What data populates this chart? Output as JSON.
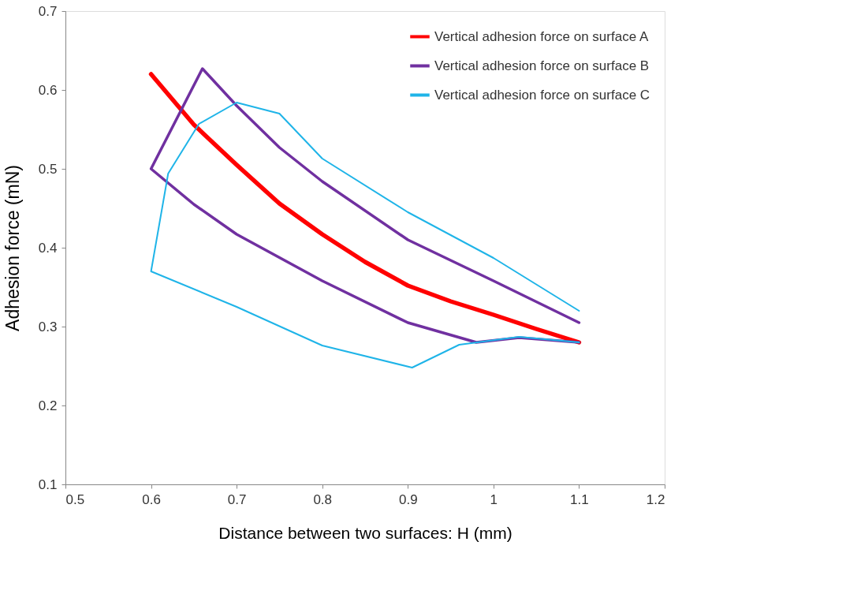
{
  "chart_data": {
    "type": "line",
    "xlabel": "Distance between two surfaces: H (mm)",
    "ylabel": "Adhesion force (mN)",
    "xlim": [
      0.5,
      1.2
    ],
    "xticks": [
      0.5,
      0.6,
      0.7,
      0.8,
      0.9,
      1,
      1.1,
      1.2
    ],
    "ylim": [
      0.1,
      0.7
    ],
    "yticks": [
      0.1,
      0.2,
      0.3,
      0.4,
      0.5,
      0.6,
      0.7
    ],
    "grid": false,
    "legend": "top right",
    "marker": "none",
    "line_style": "solid",
    "series": [
      {
        "name": "Vertical adhesion force on surface A",
        "color": "#ff0000",
        "x": [
          0.6,
          0.65,
          0.7,
          0.75,
          0.8,
          0.85,
          0.9,
          0.95,
          1.0,
          1.05,
          1.1
        ],
        "values": [
          0.62,
          0.556,
          0.505,
          0.456,
          0.417,
          0.382,
          0.352,
          0.332,
          0.315,
          0.297,
          0.28
        ]
      },
      {
        "name": "Vertical adhesion force on surface B",
        "color": "#7030a0",
        "x": [
          1.1,
          1.0,
          0.9,
          0.8,
          0.75,
          0.7,
          0.66,
          0.6,
          0.65,
          0.7,
          0.8,
          0.9,
          0.98,
          1.03,
          1.1
        ],
        "values": [
          0.305,
          0.358,
          0.41,
          0.484,
          0.527,
          0.58,
          0.627,
          0.5,
          0.455,
          0.417,
          0.358,
          0.305,
          0.28,
          0.286,
          0.28
        ]
      },
      {
        "name": "Vertical adhesion force on surface C",
        "color": "#1fb4e8",
        "x": [
          1.1,
          1.03,
          0.96,
          0.905,
          0.8,
          0.7,
          0.6,
          0.62,
          0.656,
          0.7,
          0.75,
          0.8,
          0.9,
          1.0,
          1.1
        ],
        "values": [
          0.28,
          0.287,
          0.277,
          0.248,
          0.276,
          0.325,
          0.37,
          0.494,
          0.557,
          0.584,
          0.57,
          0.513,
          0.445,
          0.387,
          0.32
        ]
      }
    ]
  }
}
